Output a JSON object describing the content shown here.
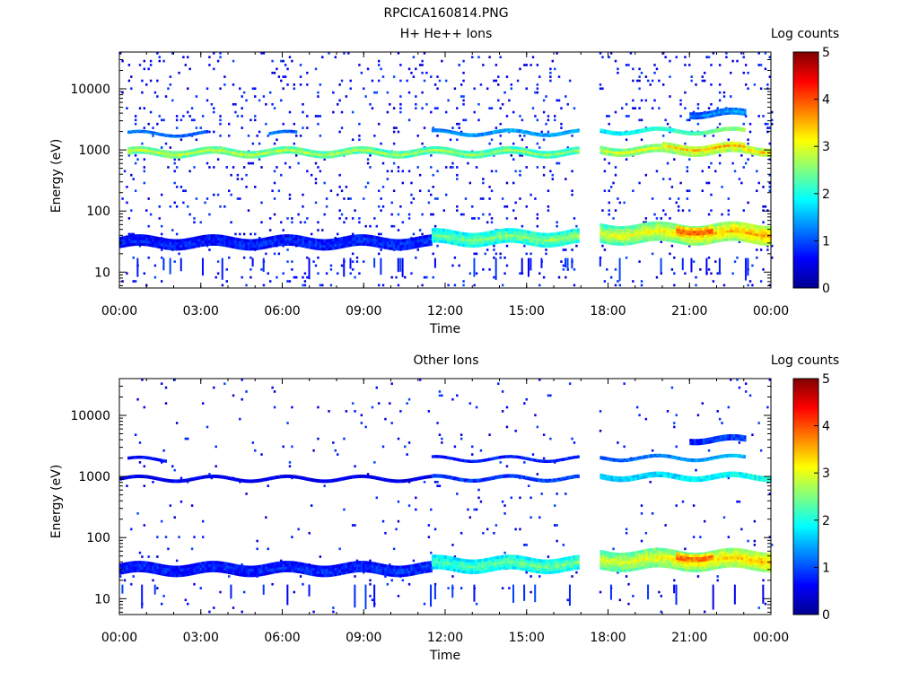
{
  "figure_title": "RPCICA160814.PNG",
  "colorbar": {
    "label": "Log counts",
    "ticks": [
      0,
      1,
      2,
      3,
      4,
      5
    ],
    "tick_labels": [
      "0",
      "1",
      "2",
      "3",
      "4",
      "5"
    ],
    "range": [
      0,
      5
    ],
    "colormap": "jet",
    "stops": [
      "#00008f",
      "#0000ff",
      "#00ffff",
      "#ffff00",
      "#ff0000",
      "#800000"
    ]
  },
  "chart_data": [
    {
      "type": "heatmap",
      "title": "H+ He++ Ions",
      "xlabel": "Time",
      "ylabel": "Energy (eV)",
      "yscale": "log",
      "ylim": [
        5.5,
        40000
      ],
      "xlim_hours": [
        0,
        24
      ],
      "x_ticks_hours": [
        0,
        3,
        6,
        9,
        12,
        15,
        18,
        21,
        24
      ],
      "x_tick_labels": [
        "00:00",
        "03:00",
        "06:00",
        "09:00",
        "12:00",
        "15:00",
        "18:00",
        "21:00",
        "00:00"
      ],
      "y_ticks": [
        10,
        100,
        1000,
        10000
      ],
      "y_tick_labels": [
        "10",
        "100",
        "1000",
        "10000"
      ],
      "data_gap_hours": [
        16.9,
        17.7
      ],
      "noise_density": 0.065,
      "bands": [
        {
          "t": [
            0.3,
            16.9
          ],
          "e_lo": 800,
          "e_hi": 1050,
          "v0": 2.9,
          "v1": 2.6,
          "note": "primary band ~900 eV"
        },
        {
          "t": [
            17.7,
            24
          ],
          "e_lo": 850,
          "e_hi": 1150,
          "v0": 2.9,
          "v1": 3.4
        },
        {
          "t": [
            20.0,
            23.0
          ],
          "e_lo": 950,
          "e_hi": 1250,
          "v0": 3.3,
          "v1": 3.6
        },
        {
          "t": [
            0.3,
            3.2
          ],
          "e_lo": 1750,
          "e_hi": 1950,
          "v0": 1.5,
          "v1": 1.2
        },
        {
          "t": [
            5.5,
            6.5
          ],
          "e_lo": 1750,
          "e_hi": 1950,
          "v0": 1.4,
          "v1": 1.2
        },
        {
          "t": [
            11.5,
            16.9
          ],
          "e_lo": 1800,
          "e_hi": 2050,
          "v0": 1.5,
          "v1": 1.7
        },
        {
          "t": [
            17.7,
            23.0
          ],
          "e_lo": 1900,
          "e_hi": 2200,
          "v0": 2.0,
          "v1": 3.0
        },
        {
          "t": [
            21.0,
            23.0
          ],
          "e_lo": 3500,
          "e_hi": 4500,
          "v0": 1.2,
          "v1": 1.6
        },
        {
          "t": [
            0.0,
            11.5
          ],
          "e_lo": 25,
          "e_hi": 38,
          "v0": 0.8,
          "v1": 0.9
        },
        {
          "t": [
            11.5,
            16.9
          ],
          "e_lo": 28,
          "e_hi": 48,
          "v0": 2.4,
          "v1": 2.6
        },
        {
          "t": [
            17.7,
            24
          ],
          "e_lo": 30,
          "e_hi": 62,
          "v0": 2.9,
          "v1": 3.6
        },
        {
          "t": [
            20.5,
            21.8
          ],
          "e_lo": 40,
          "e_hi": 58,
          "v0": 4.2,
          "v1": 4.1
        }
      ]
    },
    {
      "type": "heatmap",
      "title": "Other Ions",
      "xlabel": "Time",
      "ylabel": "Energy (eV)",
      "yscale": "log",
      "ylim": [
        5.5,
        40000
      ],
      "xlim_hours": [
        0,
        24
      ],
      "x_ticks_hours": [
        0,
        3,
        6,
        9,
        12,
        15,
        18,
        21,
        24
      ],
      "x_tick_labels": [
        "00:00",
        "03:00",
        "06:00",
        "09:00",
        "12:00",
        "15:00",
        "18:00",
        "21:00",
        "00:00"
      ],
      "y_ticks": [
        10,
        100,
        1000,
        10000
      ],
      "y_tick_labels": [
        "10",
        "100",
        "1000",
        "10000"
      ],
      "data_gap_hours": [
        16.9,
        17.7
      ],
      "noise_density": 0.022,
      "bands": [
        {
          "t": [
            0.0,
            11.5
          ],
          "e_lo": 870,
          "e_hi": 980,
          "v0": 0.6,
          "v1": 0.6,
          "note": "thin band ~900 eV"
        },
        {
          "t": [
            11.5,
            16.9
          ],
          "e_lo": 880,
          "e_hi": 1000,
          "v0": 1.0,
          "v1": 1.1
        },
        {
          "t": [
            17.7,
            24
          ],
          "e_lo": 900,
          "e_hi": 1100,
          "v0": 1.8,
          "v1": 2.3
        },
        {
          "t": [
            0.3,
            1.7
          ],
          "e_lo": 1800,
          "e_hi": 2000,
          "v0": 0.8,
          "v1": 0.8
        },
        {
          "t": [
            11.5,
            16.9
          ],
          "e_lo": 1850,
          "e_hi": 2050,
          "v0": 0.8,
          "v1": 0.9
        },
        {
          "t": [
            17.7,
            23.0
          ],
          "e_lo": 1900,
          "e_hi": 2150,
          "v0": 1.2,
          "v1": 1.8
        },
        {
          "t": [
            21.0,
            23.0
          ],
          "e_lo": 3600,
          "e_hi": 4500,
          "v0": 0.9,
          "v1": 1.1
        },
        {
          "t": [
            0.0,
            11.5
          ],
          "e_lo": 25,
          "e_hi": 38,
          "v0": 0.8,
          "v1": 0.9
        },
        {
          "t": [
            11.5,
            16.9
          ],
          "e_lo": 28,
          "e_hi": 48,
          "v0": 2.2,
          "v1": 2.5
        },
        {
          "t": [
            17.7,
            24
          ],
          "e_lo": 30,
          "e_hi": 62,
          "v0": 2.9,
          "v1": 3.5
        },
        {
          "t": [
            20.5,
            21.8
          ],
          "e_lo": 40,
          "e_hi": 58,
          "v0": 4.1,
          "v1": 4.0
        }
      ]
    }
  ]
}
